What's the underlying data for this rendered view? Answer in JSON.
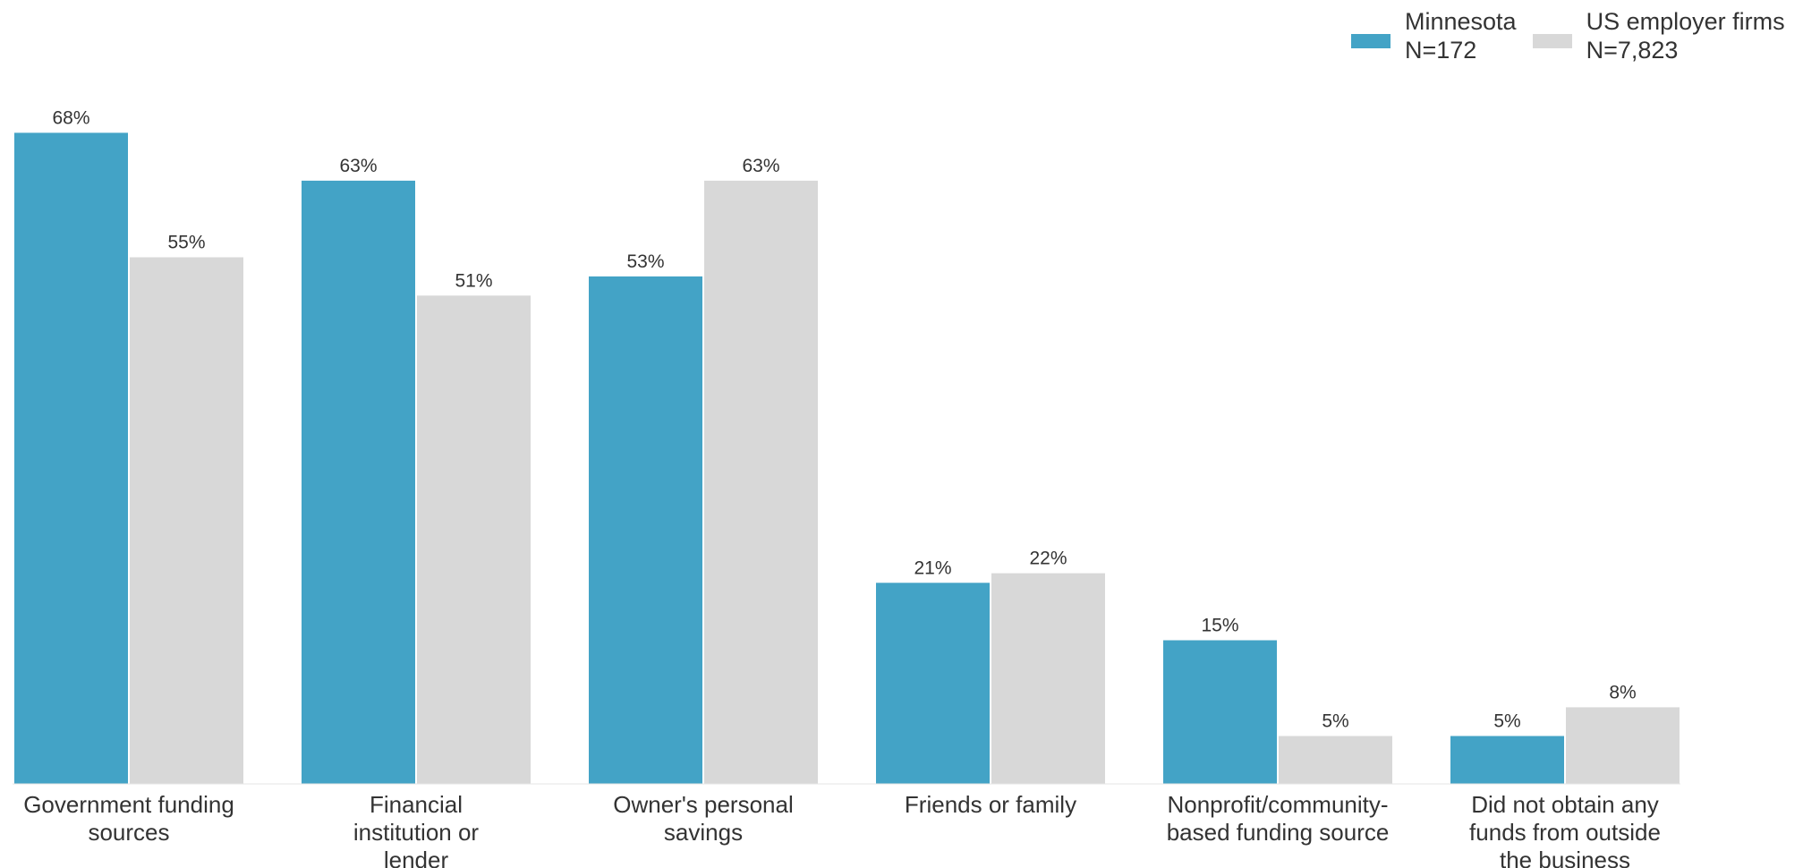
{
  "chart_data": {
    "type": "bar",
    "title": "",
    "xlabel": "",
    "ylabel": "",
    "ylim": [
      0,
      70
    ],
    "grid": false,
    "legend_position": "top-right",
    "categories": [
      [
        "Government funding",
        "sources"
      ],
      [
        "Financial",
        "institution or",
        "lender"
      ],
      [
        "Owner's personal",
        "savings"
      ],
      [
        "Friends or family"
      ],
      [
        "Nonprofit/community-",
        "based funding source"
      ],
      [
        "Did not obtain any",
        "funds from outside",
        "the business"
      ]
    ],
    "series": [
      {
        "name": "Minnesota",
        "sample": "N=172",
        "color": "#43a3c6",
        "values": [
          68,
          63,
          53,
          21,
          15,
          5
        ],
        "labels": [
          "68%",
          "63%",
          "53%",
          "21%",
          "15%",
          "5%"
        ]
      },
      {
        "name": "US employer firms",
        "sample": "N=7,823",
        "color": "#d8d8d8",
        "values": [
          55,
          51,
          63,
          22,
          5,
          8
        ],
        "labels": [
          "55%",
          "51%",
          "63%",
          "22%",
          "5%",
          "8%"
        ]
      }
    ]
  }
}
